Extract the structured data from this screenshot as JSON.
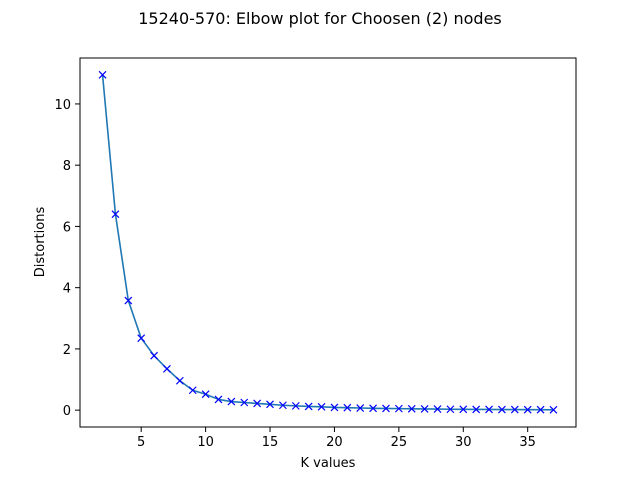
{
  "chart_data": {
    "type": "line",
    "title": "15240-570: Elbow plot for Choosen (2) nodes",
    "xlabel": "K values",
    "ylabel": "Distortions",
    "xlim": [
      0.25,
      38.75
    ],
    "ylim": [
      -0.55,
      11.5
    ],
    "xticks": [
      5,
      10,
      15,
      20,
      25,
      30,
      35
    ],
    "yticks": [
      0,
      2,
      4,
      6,
      8,
      10
    ],
    "grid": false,
    "legend": "none",
    "series": [
      {
        "line_color": "#1f77b4",
        "marker": "x",
        "marker_color": "#0000ff",
        "x": [
          2,
          3,
          4,
          5,
          6,
          7,
          8,
          9,
          10,
          11,
          12,
          13,
          14,
          15,
          16,
          17,
          18,
          19,
          20,
          21,
          22,
          23,
          24,
          25,
          26,
          27,
          28,
          29,
          30,
          31,
          32,
          33,
          34,
          35,
          36,
          37
        ],
        "y": [
          10.95,
          6.4,
          3.58,
          2.35,
          1.78,
          1.35,
          0.96,
          0.65,
          0.52,
          0.35,
          0.28,
          0.25,
          0.22,
          0.19,
          0.16,
          0.14,
          0.12,
          0.11,
          0.09,
          0.08,
          0.07,
          0.06,
          0.055,
          0.05,
          0.045,
          0.04,
          0.035,
          0.03,
          0.028,
          0.025,
          0.022,
          0.02,
          0.018,
          0.016,
          0.014,
          0.012
        ]
      }
    ]
  }
}
